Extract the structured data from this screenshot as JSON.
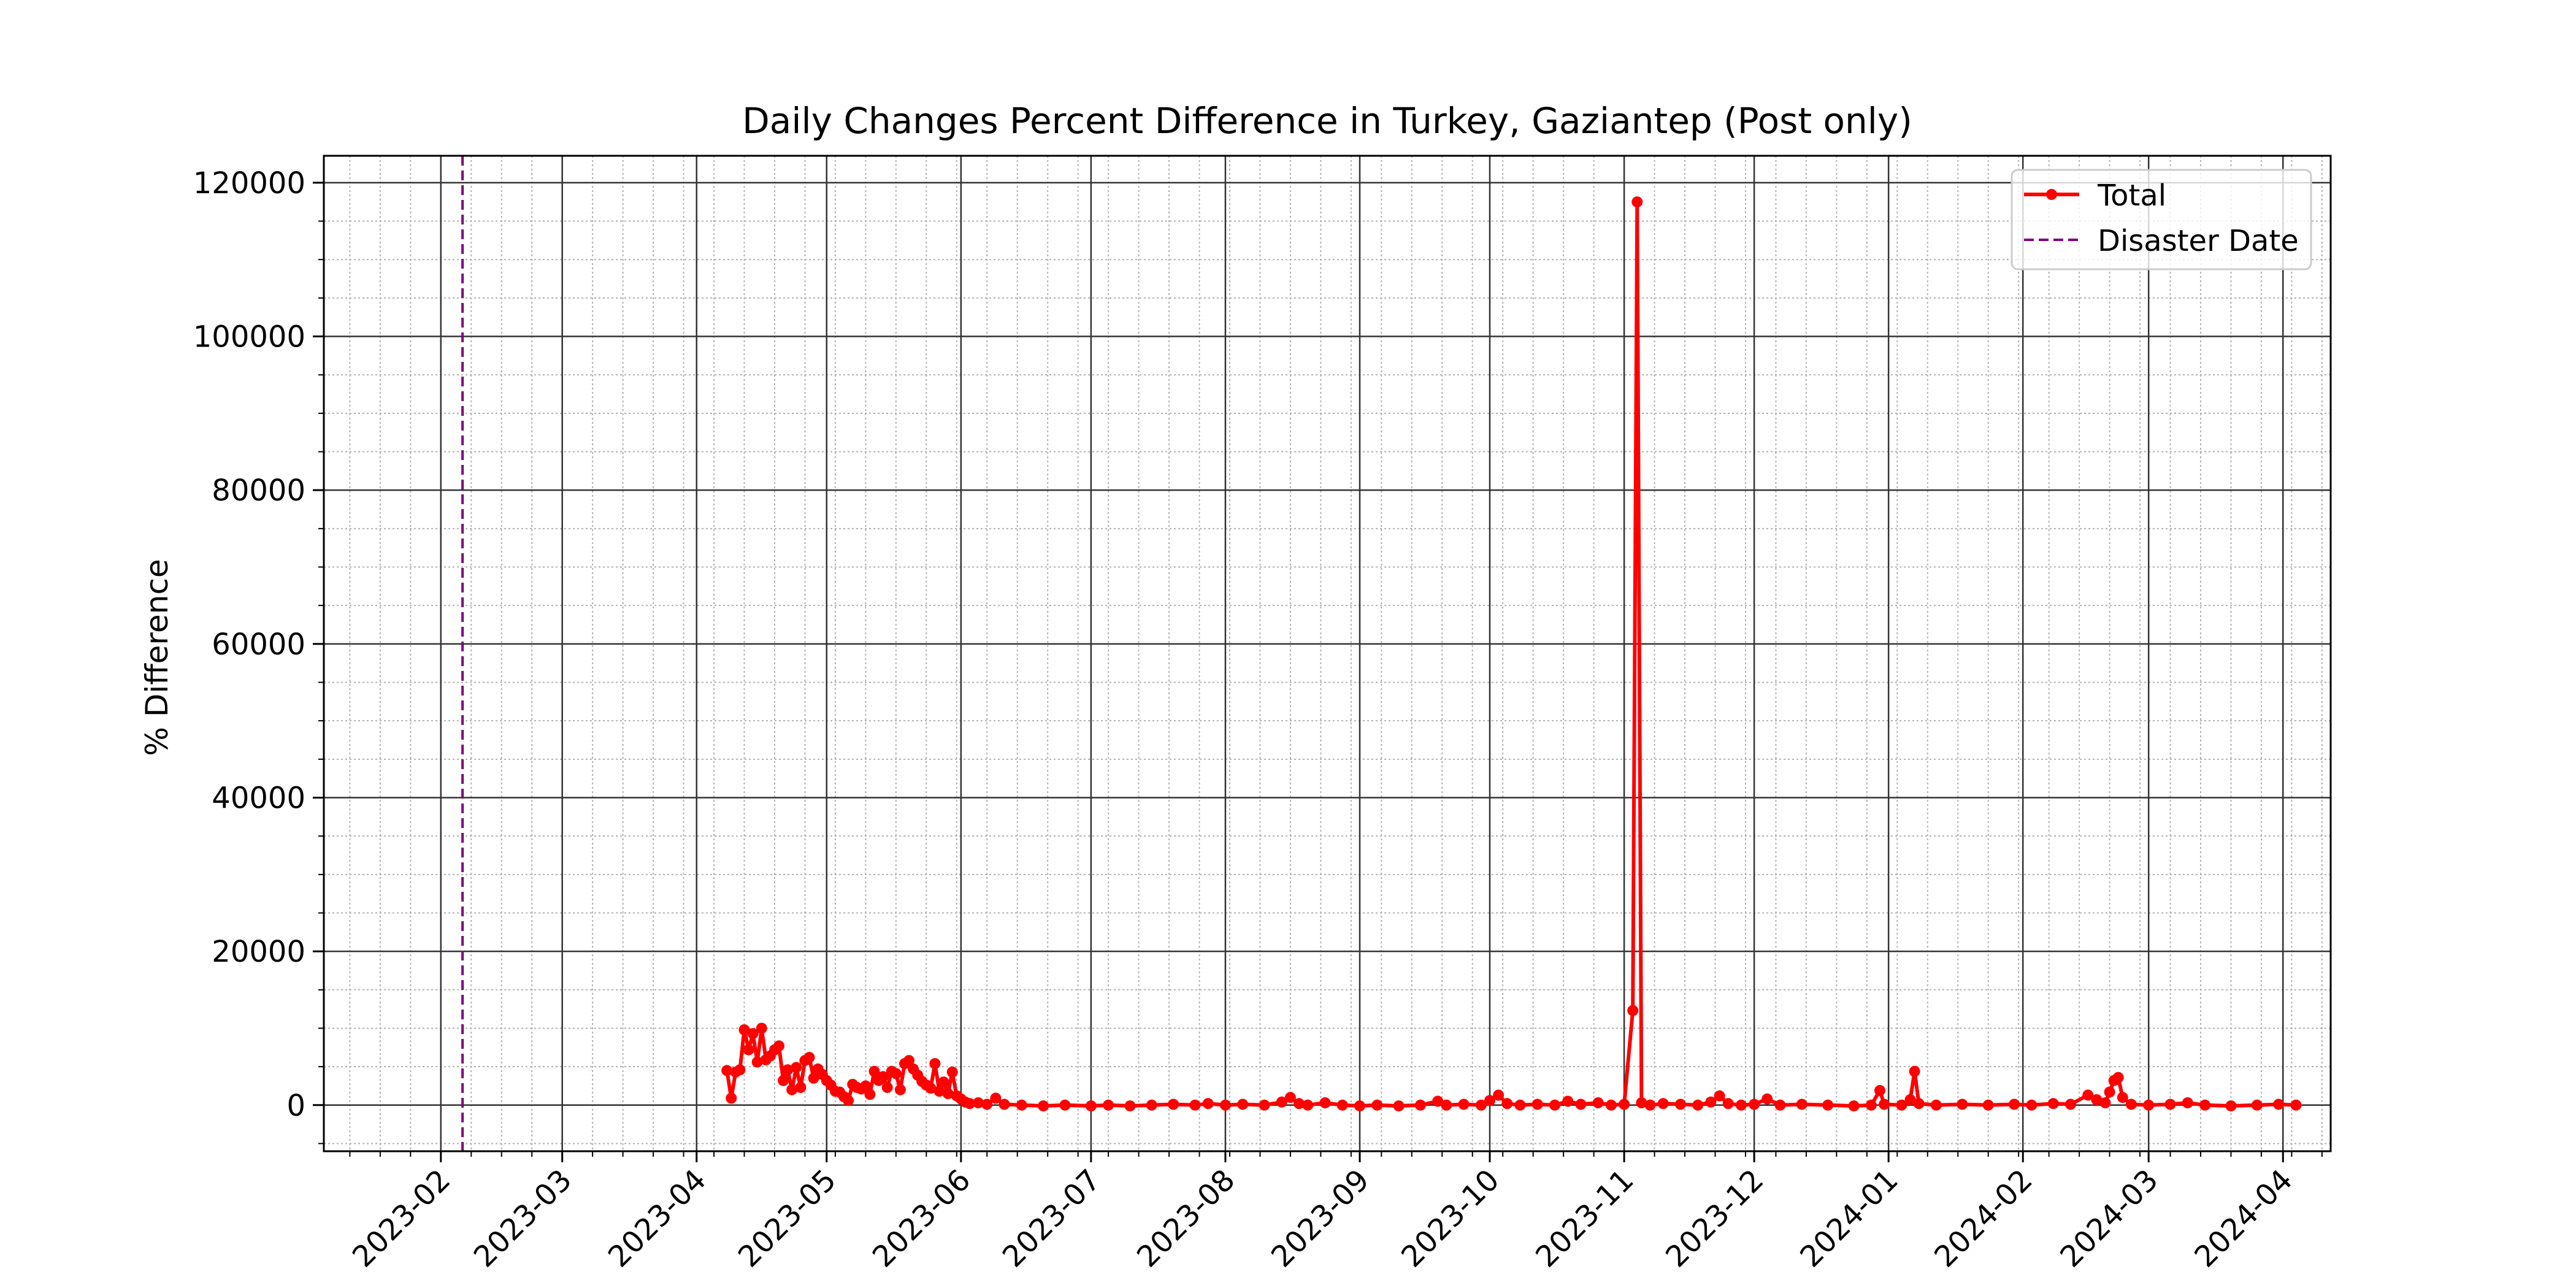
{
  "chart_data": {
    "type": "line",
    "title": "Daily Changes Percent Difference in Turkey, Gaziantep (Post only)",
    "xlabel": "",
    "ylabel": "% Difference",
    "x_range": [
      "2023-01-05",
      "2024-04-12"
    ],
    "ylim": [
      -6000,
      123500
    ],
    "y_ticks": [
      0,
      20000,
      40000,
      60000,
      80000,
      100000,
      120000
    ],
    "x_ticks": [
      "2023-02",
      "2023-03",
      "2023-04",
      "2023-05",
      "2023-06",
      "2023-07",
      "2023-08",
      "2023-09",
      "2023-10",
      "2023-11",
      "2023-12",
      "2024-01",
      "2024-02",
      "2024-03",
      "2024-04"
    ],
    "grid": {
      "major": true,
      "minor": true
    },
    "legend_position": "top-right",
    "legend": [
      "Total",
      "Disaster Date"
    ],
    "disaster_date": "2023-02-06",
    "series": [
      {
        "name": "Total",
        "color": "#ff0000",
        "points": [
          [
            "2023-04-08",
            4500
          ],
          [
            "2023-04-09",
            900
          ],
          [
            "2023-04-10",
            4300
          ],
          [
            "2023-04-11",
            4600
          ],
          [
            "2023-04-12",
            9800
          ],
          [
            "2023-04-13",
            7200
          ],
          [
            "2023-04-14",
            9300
          ],
          [
            "2023-04-15",
            5600
          ],
          [
            "2023-04-16",
            10000
          ],
          [
            "2023-04-17",
            5900
          ],
          [
            "2023-04-18",
            6400
          ],
          [
            "2023-04-19",
            7200
          ],
          [
            "2023-04-20",
            7700
          ],
          [
            "2023-04-21",
            3200
          ],
          [
            "2023-04-22",
            4600
          ],
          [
            "2023-04-23",
            2000
          ],
          [
            "2023-04-24",
            4900
          ],
          [
            "2023-04-25",
            2300
          ],
          [
            "2023-04-26",
            5800
          ],
          [
            "2023-04-27",
            6200
          ],
          [
            "2023-04-28",
            3500
          ],
          [
            "2023-04-29",
            4700
          ],
          [
            "2023-04-30",
            4000
          ],
          [
            "2023-05-01",
            3200
          ],
          [
            "2023-05-02",
            2600
          ],
          [
            "2023-05-03",
            1800
          ],
          [
            "2023-05-04",
            1700
          ],
          [
            "2023-05-05",
            1100
          ],
          [
            "2023-05-06",
            600
          ],
          [
            "2023-05-07",
            2700
          ],
          [
            "2023-05-08",
            2300
          ],
          [
            "2023-05-09",
            2100
          ],
          [
            "2023-05-10",
            2500
          ],
          [
            "2023-05-11",
            1400
          ],
          [
            "2023-05-12",
            4400
          ],
          [
            "2023-05-13",
            3200
          ],
          [
            "2023-05-14",
            3700
          ],
          [
            "2023-05-15",
            2300
          ],
          [
            "2023-05-16",
            4400
          ],
          [
            "2023-05-17",
            4100
          ],
          [
            "2023-05-18",
            2000
          ],
          [
            "2023-05-19",
            5400
          ],
          [
            "2023-05-20",
            5800
          ],
          [
            "2023-05-21",
            4700
          ],
          [
            "2023-05-22",
            3900
          ],
          [
            "2023-05-23",
            3100
          ],
          [
            "2023-05-24",
            2600
          ],
          [
            "2023-05-25",
            2200
          ],
          [
            "2023-05-26",
            5400
          ],
          [
            "2023-05-27",
            1800
          ],
          [
            "2023-05-28",
            3000
          ],
          [
            "2023-05-29",
            1500
          ],
          [
            "2023-05-30",
            4300
          ],
          [
            "2023-05-31",
            1200
          ],
          [
            "2023-06-01",
            800
          ],
          [
            "2023-06-02",
            400
          ],
          [
            "2023-06-03",
            200
          ],
          [
            "2023-06-05",
            300
          ],
          [
            "2023-06-07",
            100
          ],
          [
            "2023-06-09",
            900
          ],
          [
            "2023-06-11",
            100
          ],
          [
            "2023-06-15",
            0
          ],
          [
            "2023-06-20",
            -100
          ],
          [
            "2023-06-25",
            0
          ],
          [
            "2023-07-01",
            -100
          ],
          [
            "2023-07-05",
            0
          ],
          [
            "2023-07-10",
            -100
          ],
          [
            "2023-07-15",
            0
          ],
          [
            "2023-07-20",
            100
          ],
          [
            "2023-07-25",
            0
          ],
          [
            "2023-07-28",
            200
          ],
          [
            "2023-08-01",
            0
          ],
          [
            "2023-08-05",
            100
          ],
          [
            "2023-08-10",
            0
          ],
          [
            "2023-08-14",
            400
          ],
          [
            "2023-08-16",
            1000
          ],
          [
            "2023-08-18",
            200
          ],
          [
            "2023-08-20",
            0
          ],
          [
            "2023-08-24",
            300
          ],
          [
            "2023-08-28",
            0
          ],
          [
            "2023-09-01",
            -100
          ],
          [
            "2023-09-05",
            0
          ],
          [
            "2023-09-10",
            -100
          ],
          [
            "2023-09-15",
            0
          ],
          [
            "2023-09-19",
            500
          ],
          [
            "2023-09-21",
            0
          ],
          [
            "2023-09-25",
            100
          ],
          [
            "2023-09-29",
            0
          ],
          [
            "2023-10-01",
            600
          ],
          [
            "2023-10-03",
            1300
          ],
          [
            "2023-10-05",
            200
          ],
          [
            "2023-10-08",
            0
          ],
          [
            "2023-10-12",
            100
          ],
          [
            "2023-10-16",
            0
          ],
          [
            "2023-10-19",
            500
          ],
          [
            "2023-10-22",
            100
          ],
          [
            "2023-10-26",
            300
          ],
          [
            "2023-10-29",
            0
          ],
          [
            "2023-11-01",
            100
          ],
          [
            "2023-11-03",
            12300
          ],
          [
            "2023-11-04",
            117500
          ],
          [
            "2023-11-05",
            300
          ],
          [
            "2023-11-07",
            0
          ],
          [
            "2023-11-10",
            200
          ],
          [
            "2023-11-14",
            100
          ],
          [
            "2023-11-18",
            0
          ],
          [
            "2023-11-21",
            400
          ],
          [
            "2023-11-23",
            1200
          ],
          [
            "2023-11-25",
            200
          ],
          [
            "2023-11-28",
            0
          ],
          [
            "2023-12-01",
            100
          ],
          [
            "2023-12-04",
            800
          ],
          [
            "2023-12-07",
            0
          ],
          [
            "2023-12-12",
            100
          ],
          [
            "2023-12-18",
            0
          ],
          [
            "2023-12-24",
            -100
          ],
          [
            "2023-12-28",
            0
          ],
          [
            "2023-12-30",
            1900
          ],
          [
            "2023-12-31",
            100
          ],
          [
            "2024-01-04",
            0
          ],
          [
            "2024-01-06",
            700
          ],
          [
            "2024-01-07",
            4400
          ],
          [
            "2024-01-08",
            200
          ],
          [
            "2024-01-12",
            0
          ],
          [
            "2024-01-18",
            100
          ],
          [
            "2024-01-24",
            0
          ],
          [
            "2024-01-30",
            100
          ],
          [
            "2024-02-03",
            0
          ],
          [
            "2024-02-08",
            200
          ],
          [
            "2024-02-12",
            100
          ],
          [
            "2024-02-16",
            1300
          ],
          [
            "2024-02-18",
            700
          ],
          [
            "2024-02-20",
            300
          ],
          [
            "2024-02-21",
            1700
          ],
          [
            "2024-02-22",
            3200
          ],
          [
            "2024-02-23",
            3600
          ],
          [
            "2024-02-24",
            1000
          ],
          [
            "2024-02-26",
            100
          ],
          [
            "2024-03-01",
            0
          ],
          [
            "2024-03-06",
            100
          ],
          [
            "2024-03-10",
            300
          ],
          [
            "2024-03-14",
            0
          ],
          [
            "2024-03-20",
            -100
          ],
          [
            "2024-03-26",
            0
          ],
          [
            "2024-03-31",
            100
          ],
          [
            "2024-04-04",
            0
          ]
        ]
      }
    ]
  }
}
